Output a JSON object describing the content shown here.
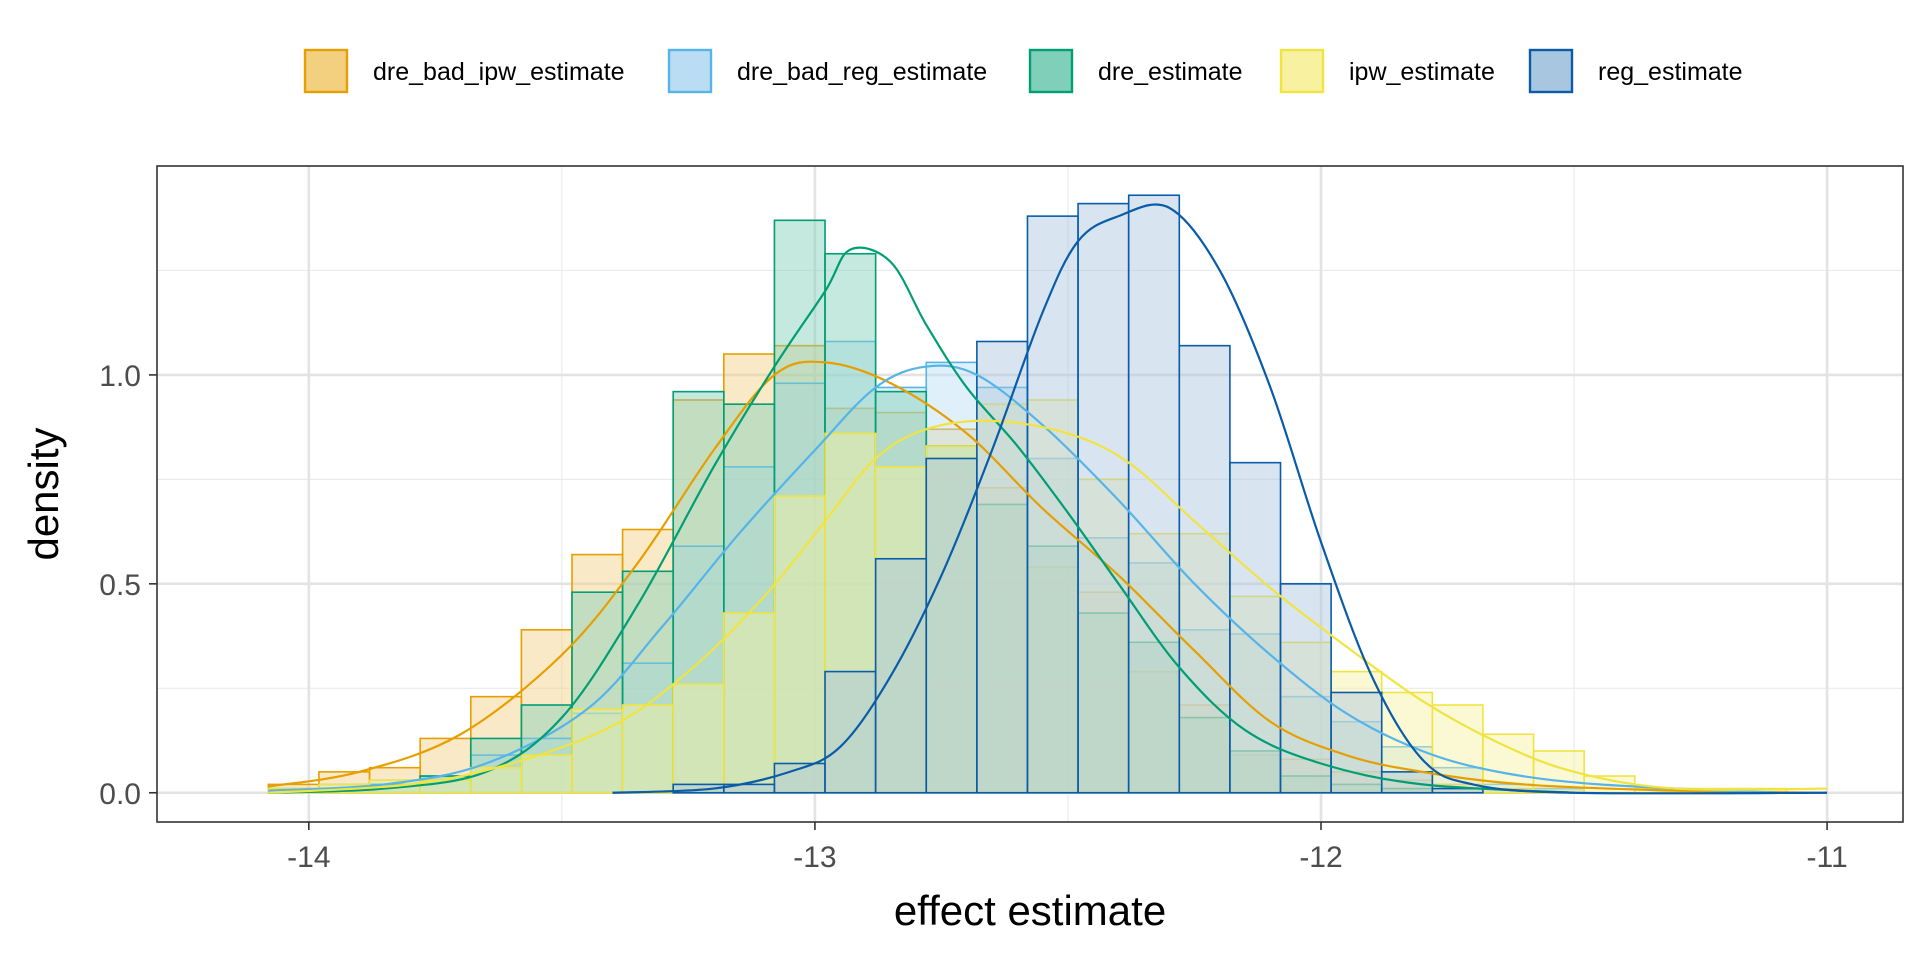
{
  "chart_data": {
    "type": "histogram_with_density",
    "xlabel": "effect estimate",
    "ylabel": "density",
    "xlim": [
      -14.3,
      -10.85
    ],
    "ylim": [
      -0.07,
      1.5
    ],
    "x_ticks": [
      -14,
      -13,
      -12,
      -11
    ],
    "x_tick_labels": [
      "-14",
      "-13",
      "-12",
      "-11"
    ],
    "y_ticks": [
      0.0,
      0.5,
      1.0
    ],
    "y_tick_labels": [
      "0.0",
      "0.5",
      "1.0"
    ],
    "grid": true,
    "legend_position": "top",
    "bin_edges": [
      -14.08,
      -13.98,
      -13.88,
      -13.78,
      -13.68,
      -13.58,
      -13.48,
      -13.38,
      -13.28,
      -13.18,
      -13.08,
      -12.98,
      -12.88,
      -12.78,
      -12.68,
      -12.58,
      -12.48,
      -12.38,
      -12.28,
      -12.18,
      -12.08,
      -11.98,
      -11.88,
      -11.78,
      -11.68,
      -11.58,
      -11.48,
      -11.38,
      -11.28,
      -11.18,
      -11.08,
      -10.98
    ],
    "series": [
      {
        "name": "dre_bad_ipw_estimate",
        "color": "#E69F00",
        "fill": "#F3CF80",
        "hist": [
          0.02,
          0.05,
          0.06,
          0.13,
          0.23,
          0.39,
          0.57,
          0.63,
          0.94,
          1.05,
          1.07,
          0.92,
          0.91,
          0.87,
          0.73,
          0.54,
          0.48,
          0.29,
          0.21,
          0.09,
          0.08,
          0.05,
          0.03,
          0.02,
          0.01,
          0.01,
          0,
          0,
          0,
          0,
          0
        ],
        "density": [
          [
            -14.08,
            0.015
          ],
          [
            -13.9,
            0.05
          ],
          [
            -13.7,
            0.14
          ],
          [
            -13.5,
            0.33
          ],
          [
            -13.35,
            0.55
          ],
          [
            -13.2,
            0.82
          ],
          [
            -13.08,
            1.0
          ],
          [
            -12.98,
            1.03
          ],
          [
            -12.85,
            0.98
          ],
          [
            -12.7,
            0.86
          ],
          [
            -12.55,
            0.68
          ],
          [
            -12.4,
            0.52
          ],
          [
            -12.25,
            0.34
          ],
          [
            -12.1,
            0.17
          ],
          [
            -11.95,
            0.09
          ],
          [
            -11.8,
            0.05
          ],
          [
            -11.6,
            0.02
          ],
          [
            -11.3,
            0.005
          ],
          [
            -11.0,
            0.0
          ]
        ]
      },
      {
        "name": "dre_bad_reg_estimate",
        "color": "#56B4E9",
        "fill": "#BBDDF3",
        "hist": [
          0.01,
          0.02,
          0.03,
          0.04,
          0.09,
          0.13,
          0.19,
          0.31,
          0.59,
          0.78,
          0.98,
          1.08,
          0.97,
          1.03,
          0.97,
          0.8,
          0.61,
          0.55,
          0.39,
          0.38,
          0.23,
          0.17,
          0.11,
          0.06,
          0.02,
          0.01,
          0,
          0,
          0,
          0,
          0
        ],
        "density": [
          [
            -14.08,
            0.005
          ],
          [
            -13.85,
            0.02
          ],
          [
            -13.65,
            0.07
          ],
          [
            -13.45,
            0.2
          ],
          [
            -13.3,
            0.4
          ],
          [
            -13.15,
            0.62
          ],
          [
            -13.0,
            0.82
          ],
          [
            -12.88,
            0.97
          ],
          [
            -12.78,
            1.02
          ],
          [
            -12.68,
            1.0
          ],
          [
            -12.55,
            0.88
          ],
          [
            -12.4,
            0.7
          ],
          [
            -12.25,
            0.5
          ],
          [
            -12.1,
            0.33
          ],
          [
            -11.95,
            0.19
          ],
          [
            -11.8,
            0.1
          ],
          [
            -11.65,
            0.05
          ],
          [
            -11.45,
            0.02
          ],
          [
            -11.1,
            0.0
          ]
        ]
      },
      {
        "name": "dre_estimate",
        "color": "#009E73",
        "fill": "#80CFB9",
        "hist": [
          0,
          0.01,
          0.02,
          0.04,
          0.13,
          0.21,
          0.48,
          0.53,
          0.96,
          0.93,
          1.37,
          1.29,
          0.96,
          0.83,
          0.69,
          0.59,
          0.43,
          0.36,
          0.18,
          0.1,
          0.04,
          0.02,
          0.01,
          0,
          0,
          0,
          0,
          0,
          0,
          0,
          0
        ],
        "density": [
          [
            -14.08,
            0.0
          ],
          [
            -13.85,
            0.01
          ],
          [
            -13.65,
            0.05
          ],
          [
            -13.5,
            0.18
          ],
          [
            -13.35,
            0.45
          ],
          [
            -13.2,
            0.78
          ],
          [
            -13.08,
            1.02
          ],
          [
            -12.98,
            1.2
          ],
          [
            -12.93,
            1.3
          ],
          [
            -12.85,
            1.27
          ],
          [
            -12.78,
            1.12
          ],
          [
            -12.7,
            0.97
          ],
          [
            -12.6,
            0.83
          ],
          [
            -12.5,
            0.67
          ],
          [
            -12.4,
            0.5
          ],
          [
            -12.28,
            0.3
          ],
          [
            -12.15,
            0.15
          ],
          [
            -12.0,
            0.07
          ],
          [
            -11.8,
            0.02
          ],
          [
            -11.5,
            0.0
          ]
        ]
      },
      {
        "name": "ipw_estimate",
        "color": "#F0E442",
        "fill": "#F7F1A0",
        "hist": [
          0.01,
          0.02,
          0.03,
          0.03,
          0.06,
          0.09,
          0.2,
          0.21,
          0.26,
          0.43,
          0.71,
          0.86,
          0.78,
          0.83,
          0.93,
          0.94,
          0.75,
          0.62,
          0.62,
          0.47,
          0.36,
          0.29,
          0.24,
          0.21,
          0.14,
          0.1,
          0.04,
          0.01,
          0.01,
          0.01,
          0
        ],
        "density": [
          [
            -14.08,
            0.0
          ],
          [
            -13.8,
            0.02
          ],
          [
            -13.6,
            0.07
          ],
          [
            -13.4,
            0.16
          ],
          [
            -13.25,
            0.29
          ],
          [
            -13.1,
            0.47
          ],
          [
            -12.98,
            0.65
          ],
          [
            -12.88,
            0.8
          ],
          [
            -12.78,
            0.87
          ],
          [
            -12.65,
            0.89
          ],
          [
            -12.5,
            0.86
          ],
          [
            -12.38,
            0.79
          ],
          [
            -12.25,
            0.65
          ],
          [
            -12.1,
            0.49
          ],
          [
            -11.95,
            0.35
          ],
          [
            -11.8,
            0.22
          ],
          [
            -11.65,
            0.12
          ],
          [
            -11.5,
            0.05
          ],
          [
            -11.3,
            0.01
          ],
          [
            -11.0,
            0.01
          ]
        ]
      },
      {
        "name": "reg_estimate",
        "color": "#0A5CA8",
        "fill": "#A8C6E0",
        "hist": [
          0,
          0,
          0,
          0,
          0,
          0,
          0,
          0,
          0.02,
          0.02,
          0.07,
          0.29,
          0.56,
          0.8,
          1.08,
          1.38,
          1.41,
          1.43,
          1.07,
          0.79,
          0.5,
          0.24,
          0.05,
          0.01,
          0,
          0,
          0,
          0,
          0,
          0,
          0
        ],
        "density": [
          [
            -13.4,
            0.0
          ],
          [
            -13.2,
            0.01
          ],
          [
            -13.05,
            0.05
          ],
          [
            -12.95,
            0.11
          ],
          [
            -12.85,
            0.28
          ],
          [
            -12.75,
            0.52
          ],
          [
            -12.65,
            0.82
          ],
          [
            -12.55,
            1.15
          ],
          [
            -12.48,
            1.32
          ],
          [
            -12.4,
            1.38
          ],
          [
            -12.3,
            1.4
          ],
          [
            -12.2,
            1.25
          ],
          [
            -12.1,
            0.97
          ],
          [
            -12.0,
            0.6
          ],
          [
            -11.9,
            0.28
          ],
          [
            -11.8,
            0.08
          ],
          [
            -11.7,
            0.02
          ],
          [
            -11.5,
            0.0
          ],
          [
            -11.0,
            0.0
          ]
        ]
      }
    ]
  }
}
